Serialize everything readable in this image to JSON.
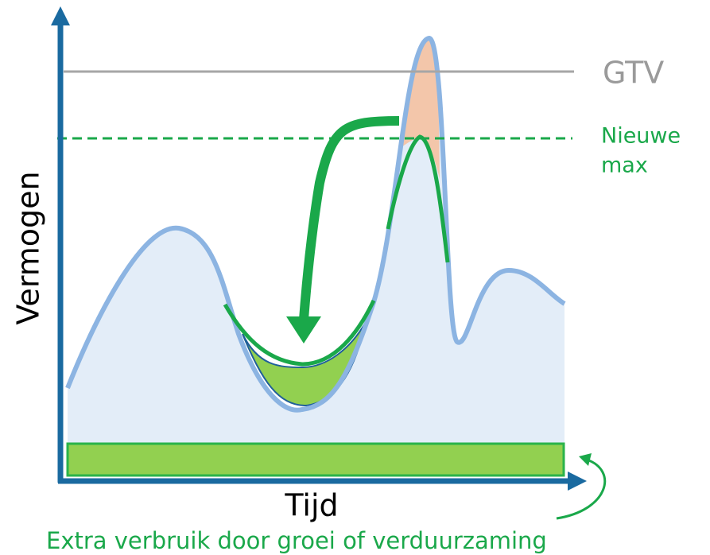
{
  "labels": {
    "y_axis": "Vermogen",
    "x_axis": "Tijd",
    "gtv": "GTV",
    "new_max": [
      "Nieuwe",
      "max"
    ],
    "caption": "Extra verbruik door groei of verduurzaming"
  }
}
